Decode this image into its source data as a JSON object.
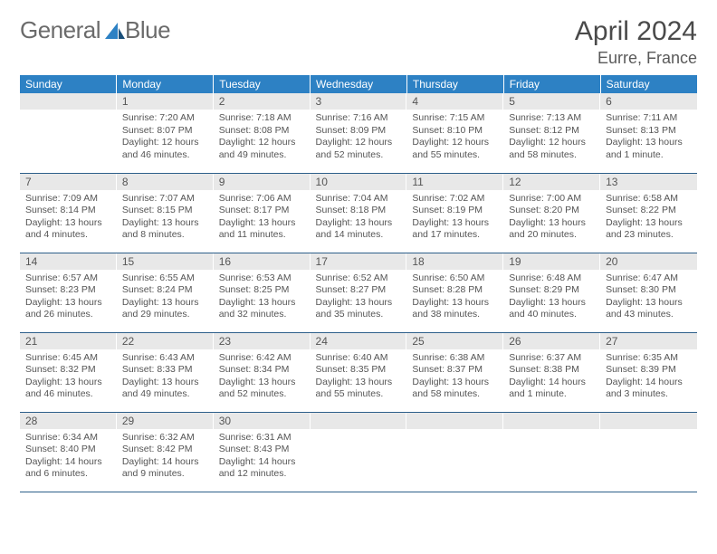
{
  "brand": {
    "text_a": "General",
    "text_b": "Blue"
  },
  "title": "April 2024",
  "location": "Eurre, France",
  "header_bg": "#2d81c4",
  "header_fg": "#ffffff",
  "cell_border": "#2d5f8a",
  "daynum_bg": "#e8e8e8",
  "text_color": "#555555",
  "day_labels": [
    "Sunday",
    "Monday",
    "Tuesday",
    "Wednesday",
    "Thursday",
    "Friday",
    "Saturday"
  ],
  "weeks": [
    [
      {
        "n": "",
        "lines": []
      },
      {
        "n": "1",
        "lines": [
          "Sunrise: 7:20 AM",
          "Sunset: 8:07 PM",
          "Daylight: 12 hours",
          "and 46 minutes."
        ]
      },
      {
        "n": "2",
        "lines": [
          "Sunrise: 7:18 AM",
          "Sunset: 8:08 PM",
          "Daylight: 12 hours",
          "and 49 minutes."
        ]
      },
      {
        "n": "3",
        "lines": [
          "Sunrise: 7:16 AM",
          "Sunset: 8:09 PM",
          "Daylight: 12 hours",
          "and 52 minutes."
        ]
      },
      {
        "n": "4",
        "lines": [
          "Sunrise: 7:15 AM",
          "Sunset: 8:10 PM",
          "Daylight: 12 hours",
          "and 55 minutes."
        ]
      },
      {
        "n": "5",
        "lines": [
          "Sunrise: 7:13 AM",
          "Sunset: 8:12 PM",
          "Daylight: 12 hours",
          "and 58 minutes."
        ]
      },
      {
        "n": "6",
        "lines": [
          "Sunrise: 7:11 AM",
          "Sunset: 8:13 PM",
          "Daylight: 13 hours",
          "and 1 minute."
        ]
      }
    ],
    [
      {
        "n": "7",
        "lines": [
          "Sunrise: 7:09 AM",
          "Sunset: 8:14 PM",
          "Daylight: 13 hours",
          "and 4 minutes."
        ]
      },
      {
        "n": "8",
        "lines": [
          "Sunrise: 7:07 AM",
          "Sunset: 8:15 PM",
          "Daylight: 13 hours",
          "and 8 minutes."
        ]
      },
      {
        "n": "9",
        "lines": [
          "Sunrise: 7:06 AM",
          "Sunset: 8:17 PM",
          "Daylight: 13 hours",
          "and 11 minutes."
        ]
      },
      {
        "n": "10",
        "lines": [
          "Sunrise: 7:04 AM",
          "Sunset: 8:18 PM",
          "Daylight: 13 hours",
          "and 14 minutes."
        ]
      },
      {
        "n": "11",
        "lines": [
          "Sunrise: 7:02 AM",
          "Sunset: 8:19 PM",
          "Daylight: 13 hours",
          "and 17 minutes."
        ]
      },
      {
        "n": "12",
        "lines": [
          "Sunrise: 7:00 AM",
          "Sunset: 8:20 PM",
          "Daylight: 13 hours",
          "and 20 minutes."
        ]
      },
      {
        "n": "13",
        "lines": [
          "Sunrise: 6:58 AM",
          "Sunset: 8:22 PM",
          "Daylight: 13 hours",
          "and 23 minutes."
        ]
      }
    ],
    [
      {
        "n": "14",
        "lines": [
          "Sunrise: 6:57 AM",
          "Sunset: 8:23 PM",
          "Daylight: 13 hours",
          "and 26 minutes."
        ]
      },
      {
        "n": "15",
        "lines": [
          "Sunrise: 6:55 AM",
          "Sunset: 8:24 PM",
          "Daylight: 13 hours",
          "and 29 minutes."
        ]
      },
      {
        "n": "16",
        "lines": [
          "Sunrise: 6:53 AM",
          "Sunset: 8:25 PM",
          "Daylight: 13 hours",
          "and 32 minutes."
        ]
      },
      {
        "n": "17",
        "lines": [
          "Sunrise: 6:52 AM",
          "Sunset: 8:27 PM",
          "Daylight: 13 hours",
          "and 35 minutes."
        ]
      },
      {
        "n": "18",
        "lines": [
          "Sunrise: 6:50 AM",
          "Sunset: 8:28 PM",
          "Daylight: 13 hours",
          "and 38 minutes."
        ]
      },
      {
        "n": "19",
        "lines": [
          "Sunrise: 6:48 AM",
          "Sunset: 8:29 PM",
          "Daylight: 13 hours",
          "and 40 minutes."
        ]
      },
      {
        "n": "20",
        "lines": [
          "Sunrise: 6:47 AM",
          "Sunset: 8:30 PM",
          "Daylight: 13 hours",
          "and 43 minutes."
        ]
      }
    ],
    [
      {
        "n": "21",
        "lines": [
          "Sunrise: 6:45 AM",
          "Sunset: 8:32 PM",
          "Daylight: 13 hours",
          "and 46 minutes."
        ]
      },
      {
        "n": "22",
        "lines": [
          "Sunrise: 6:43 AM",
          "Sunset: 8:33 PM",
          "Daylight: 13 hours",
          "and 49 minutes."
        ]
      },
      {
        "n": "23",
        "lines": [
          "Sunrise: 6:42 AM",
          "Sunset: 8:34 PM",
          "Daylight: 13 hours",
          "and 52 minutes."
        ]
      },
      {
        "n": "24",
        "lines": [
          "Sunrise: 6:40 AM",
          "Sunset: 8:35 PM",
          "Daylight: 13 hours",
          "and 55 minutes."
        ]
      },
      {
        "n": "25",
        "lines": [
          "Sunrise: 6:38 AM",
          "Sunset: 8:37 PM",
          "Daylight: 13 hours",
          "and 58 minutes."
        ]
      },
      {
        "n": "26",
        "lines": [
          "Sunrise: 6:37 AM",
          "Sunset: 8:38 PM",
          "Daylight: 14 hours",
          "and 1 minute."
        ]
      },
      {
        "n": "27",
        "lines": [
          "Sunrise: 6:35 AM",
          "Sunset: 8:39 PM",
          "Daylight: 14 hours",
          "and 3 minutes."
        ]
      }
    ],
    [
      {
        "n": "28",
        "lines": [
          "Sunrise: 6:34 AM",
          "Sunset: 8:40 PM",
          "Daylight: 14 hours",
          "and 6 minutes."
        ]
      },
      {
        "n": "29",
        "lines": [
          "Sunrise: 6:32 AM",
          "Sunset: 8:42 PM",
          "Daylight: 14 hours",
          "and 9 minutes."
        ]
      },
      {
        "n": "30",
        "lines": [
          "Sunrise: 6:31 AM",
          "Sunset: 8:43 PM",
          "Daylight: 14 hours",
          "and 12 minutes."
        ]
      },
      {
        "n": "",
        "lines": []
      },
      {
        "n": "",
        "lines": []
      },
      {
        "n": "",
        "lines": []
      },
      {
        "n": "",
        "lines": []
      }
    ]
  ]
}
